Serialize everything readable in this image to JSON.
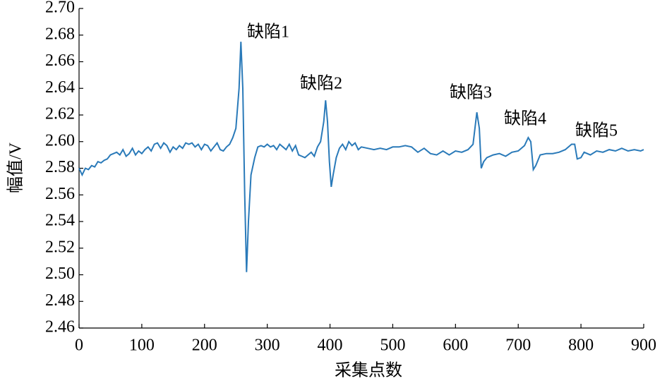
{
  "chart_data": {
    "type": "line",
    "x_label": "采集点数",
    "y_label": "幅值/V",
    "annotations": [
      "缺陷1",
      "缺陷2",
      "缺陷3",
      "缺陷4",
      "缺陷5"
    ],
    "xlim": [
      0,
      900
    ],
    "xticks": [
      0,
      100,
      200,
      300,
      400,
      500,
      600,
      700,
      800,
      900
    ],
    "ylim": [
      2.46,
      2.7
    ],
    "yticks": [
      2.46,
      2.48,
      {
        "value": 2.5,
        "label": "2.50"
      },
      2.52,
      2.54,
      2.56,
      2.58,
      {
        "value": 2.6,
        "label": "2.60"
      },
      2.62,
      2.64,
      2.66,
      2.68,
      {
        "value": 2.7,
        "label": "2.70"
      }
    ],
    "series": [
      {
        "color": "#2a7ab9",
        "x": [
          0,
          5,
          10,
          15,
          20,
          25,
          30,
          35,
          40,
          45,
          50,
          55,
          60,
          65,
          70,
          75,
          80,
          85,
          90,
          95,
          100,
          105,
          110,
          115,
          120,
          125,
          130,
          135,
          140,
          145,
          150,
          155,
          160,
          165,
          170,
          175,
          180,
          185,
          190,
          195,
          200,
          205,
          210,
          215,
          220,
          225,
          230,
          235,
          240,
          245,
          250,
          255,
          258,
          261,
          264,
          267,
          270,
          274,
          280,
          285,
          290,
          295,
          300,
          305,
          310,
          315,
          320,
          325,
          330,
          335,
          340,
          345,
          350,
          355,
          360,
          365,
          370,
          375,
          380,
          385,
          390,
          393,
          396,
          399,
          402,
          405,
          410,
          415,
          420,
          425,
          430,
          435,
          440,
          445,
          450,
          460,
          470,
          480,
          490,
          500,
          510,
          520,
          530,
          540,
          550,
          560,
          570,
          580,
          590,
          600,
          610,
          620,
          628,
          634,
          638,
          641,
          645,
          650,
          660,
          670,
          680,
          690,
          700,
          710,
          716,
          720,
          724,
          728,
          735,
          745,
          755,
          765,
          775,
          785,
          790,
          794,
          800,
          805,
          815,
          825,
          835,
          845,
          855,
          865,
          875,
          885,
          895,
          900
        ],
        "values": [
          2.58,
          2.575,
          2.58,
          2.579,
          2.582,
          2.581,
          2.585,
          2.584,
          2.586,
          2.587,
          2.59,
          2.591,
          2.592,
          2.59,
          2.594,
          2.589,
          2.591,
          2.595,
          2.59,
          2.593,
          2.591,
          2.594,
          2.596,
          2.593,
          2.598,
          2.599,
          2.595,
          2.599,
          2.597,
          2.592,
          2.596,
          2.594,
          2.597,
          2.595,
          2.599,
          2.598,
          2.599,
          2.596,
          2.598,
          2.594,
          2.598,
          2.597,
          2.593,
          2.596,
          2.599,
          2.594,
          2.593,
          2.596,
          2.598,
          2.603,
          2.61,
          2.64,
          2.675,
          2.64,
          2.56,
          2.502,
          2.54,
          2.575,
          2.588,
          2.596,
          2.597,
          2.596,
          2.598,
          2.596,
          2.597,
          2.594,
          2.598,
          2.596,
          2.594,
          2.598,
          2.593,
          2.597,
          2.59,
          2.589,
          2.588,
          2.59,
          2.592,
          2.589,
          2.596,
          2.6,
          2.615,
          2.631,
          2.615,
          2.585,
          2.566,
          2.575,
          2.588,
          2.595,
          2.598,
          2.594,
          2.6,
          2.597,
          2.599,
          2.594,
          2.596,
          2.595,
          2.594,
          2.595,
          2.594,
          2.596,
          2.596,
          2.597,
          2.596,
          2.592,
          2.595,
          2.591,
          2.59,
          2.593,
          2.59,
          2.593,
          2.592,
          2.594,
          2.598,
          2.622,
          2.61,
          2.58,
          2.585,
          2.588,
          2.59,
          2.591,
          2.589,
          2.592,
          2.593,
          2.597,
          2.603,
          2.6,
          2.579,
          2.582,
          2.59,
          2.591,
          2.591,
          2.592,
          2.594,
          2.598,
          2.598,
          2.587,
          2.588,
          2.592,
          2.59,
          2.593,
          2.592,
          2.594,
          2.593,
          2.595,
          2.593,
          2.594,
          2.593,
          2.594
        ]
      }
    ]
  }
}
